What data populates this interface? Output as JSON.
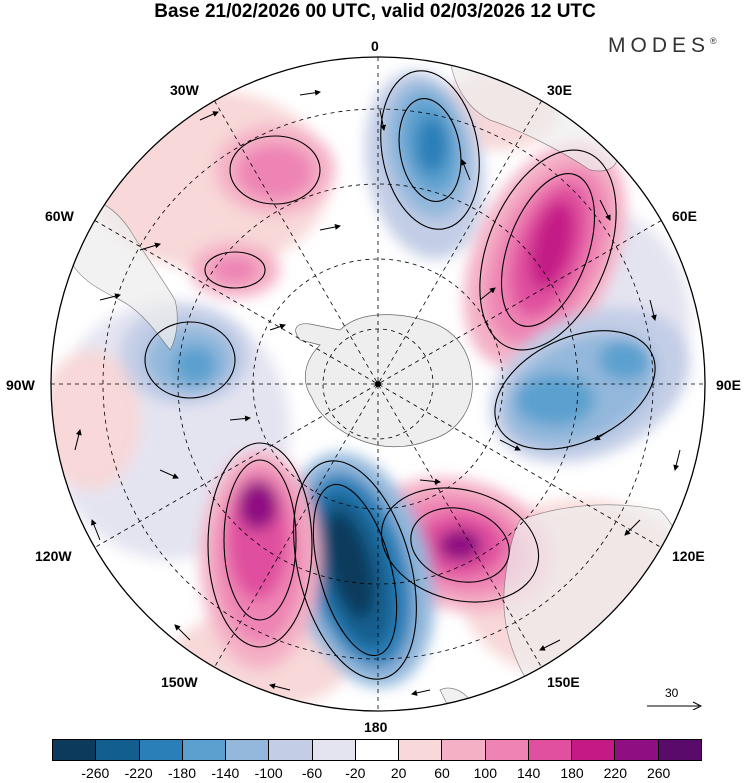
{
  "header": {
    "title": "Base 21/02/2026 00 UTC, valid 02/03/2026 12 UTC",
    "brand": "MODES",
    "brand_mark": "®"
  },
  "map": {
    "projection": "south polar stereographic",
    "longitude_labels": {
      "top": "0",
      "upper_right": "30E",
      "right_upper": "60E",
      "right": "90E",
      "right_lower": "120E",
      "lower_right": "150E",
      "bottom": "180",
      "lower_left": "150W",
      "left_lower": "120W",
      "left": "90W",
      "left_upper": "60W",
      "upper_left": "30W"
    },
    "vector_reference": {
      "value": "30"
    }
  },
  "colorbar": {
    "colors": [
      "#0b3a5c",
      "#125f8f",
      "#2a7fb8",
      "#5ba0cf",
      "#93b8dc",
      "#c3cde6",
      "#e4e4f1",
      "#ffffff",
      "#f8d8d8",
      "#f4b1c6",
      "#ee84b4",
      "#e0509f",
      "#c41a86",
      "#8f0f82",
      "#5a0a6b"
    ],
    "tick_labels": [
      "-260",
      "-220",
      "-180",
      "-140",
      "-100",
      "-60",
      "-20",
      "20",
      "60",
      "100",
      "140",
      "180",
      "220",
      "260"
    ]
  },
  "colors": {
    "land": "#eeeeee",
    "coast": "#666666",
    "grid": "#000000"
  }
}
